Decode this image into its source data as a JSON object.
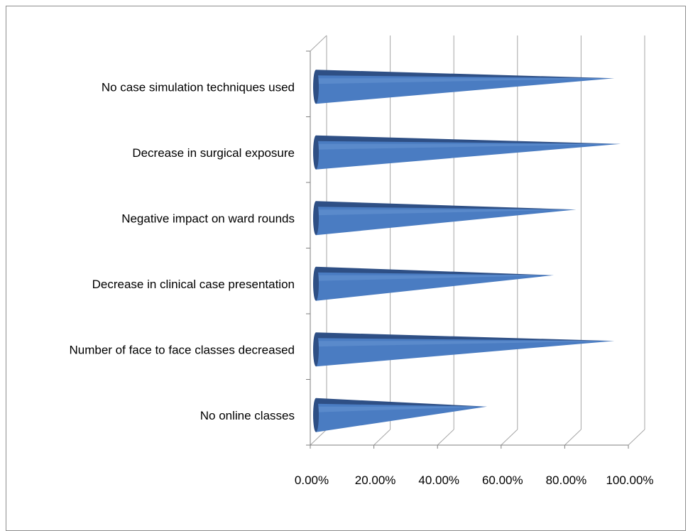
{
  "chart_data": {
    "type": "bar",
    "orientation": "horizontal",
    "style": "3d-cone",
    "categories": [
      "No online classes",
      "Number of face to face classes decreased",
      "Decrease in clinical case presentation",
      "Negative impact on ward rounds",
      "Decrease in surgical exposure",
      "No case simulation techniques used"
    ],
    "values": [
      0.53,
      0.93,
      0.74,
      0.81,
      0.95,
      0.93
    ],
    "xlim": [
      0,
      1
    ],
    "xticks": [
      "0.00%",
      "20.00%",
      "40.00%",
      "60.00%",
      "80.00%",
      "100.00%"
    ],
    "grid": true,
    "legend": "none",
    "colors": {
      "bar_top": "#2e4f85",
      "bar_face": "#4a7cc2",
      "bar_highlight": "#6f9bd6",
      "grid": "#a6a6a6",
      "axis": "#7f7f7f"
    }
  }
}
